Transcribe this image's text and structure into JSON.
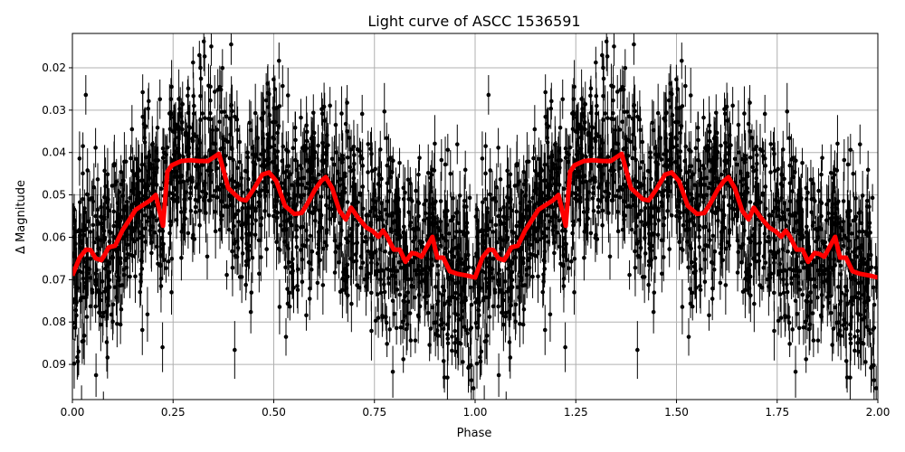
{
  "chart_data": {
    "type": "scatter",
    "title": "Light curve of ASCC 1536591",
    "xlabel": "Phase",
    "ylabel": "Δ Magnitude",
    "xlim": [
      0.0,
      2.0
    ],
    "ylim": [
      0.0119,
      0.0983
    ],
    "y_inverted": true,
    "grid": true,
    "xticks": [
      "0.00",
      "0.25",
      "0.50",
      "0.75",
      "1.00",
      "1.25",
      "1.50",
      "1.75",
      "2.00"
    ],
    "yticks": [
      "0.02",
      "0.03",
      "0.04",
      "0.05",
      "0.06",
      "0.07",
      "0.08",
      "0.09"
    ],
    "colors": {
      "points": "#000000",
      "fit": "#ff0000",
      "grid": "#b0b0b0"
    },
    "series": [
      {
        "kind": "errorbar-points",
        "color": "#000000",
        "description_of_spread": "dense observations scattered around the fit, roughly 0.012 to 0.098 mag"
      },
      {
        "kind": "smoothed-line",
        "color": "#ff0000",
        "x": [
          0,
          0.018,
          0.034,
          0.045,
          0.058,
          0.072,
          0.081,
          0.09,
          0.106,
          0.124,
          0.139,
          0.157,
          0.175,
          0.193,
          0.207,
          0.225,
          0.236,
          0.247,
          0.27,
          0.292,
          0.315,
          0.337,
          0.364,
          0.387,
          0.416,
          0.431,
          0.449,
          0.472,
          0.488,
          0.506,
          0.528,
          0.551,
          0.569,
          0.584,
          0.602,
          0.618,
          0.629,
          0.645,
          0.663,
          0.679,
          0.692,
          0.708,
          0.73,
          0.746,
          0.76,
          0.771,
          0.782,
          0.798,
          0.813,
          0.827,
          0.843,
          0.854,
          0.867,
          0.894,
          0.906,
          0.921,
          0.937,
          0.955,
          0.978,
          1.0,
          1.018,
          1.034,
          1.045,
          1.058,
          1.072,
          1.081,
          1.09,
          1.106,
          1.124,
          1.139,
          1.157,
          1.175,
          1.193,
          1.207,
          1.225,
          1.236,
          1.247,
          1.27,
          1.292,
          1.315,
          1.337,
          1.364,
          1.387,
          1.416,
          1.431,
          1.449,
          1.472,
          1.488,
          1.506,
          1.528,
          1.551,
          1.569,
          1.584,
          1.602,
          1.618,
          1.629,
          1.645,
          1.663,
          1.679,
          1.692,
          1.708,
          1.73,
          1.746,
          1.76,
          1.771,
          1.782,
          1.798,
          1.813,
          1.827,
          1.843,
          1.854,
          1.867,
          1.894,
          1.906,
          1.921,
          1.937,
          1.955,
          1.978,
          2.0
        ],
        "y": [
          0.069,
          0.0648,
          0.0629,
          0.063,
          0.065,
          0.0654,
          0.064,
          0.0624,
          0.062,
          0.0584,
          0.0562,
          0.0535,
          0.0524,
          0.0513,
          0.05,
          0.0573,
          0.0445,
          0.043,
          0.042,
          0.0418,
          0.042,
          0.042,
          0.0403,
          0.0484,
          0.051,
          0.0513,
          0.0488,
          0.0452,
          0.0447,
          0.0467,
          0.0526,
          0.0545,
          0.0543,
          0.052,
          0.0488,
          0.0467,
          0.0458,
          0.0484,
          0.0537,
          0.0558,
          0.053,
          0.0552,
          0.0577,
          0.0586,
          0.0599,
          0.0584,
          0.0599,
          0.0629,
          0.0629,
          0.0658,
          0.0637,
          0.0639,
          0.0646,
          0.0599,
          0.0648,
          0.0648,
          0.068,
          0.0686,
          0.069,
          0.0695,
          0.0648,
          0.0629,
          0.063,
          0.065,
          0.0654,
          0.064,
          0.0624,
          0.062,
          0.0584,
          0.0562,
          0.0535,
          0.0524,
          0.0513,
          0.05,
          0.0573,
          0.0445,
          0.043,
          0.042,
          0.0418,
          0.042,
          0.042,
          0.0403,
          0.0484,
          0.051,
          0.0513,
          0.0488,
          0.0452,
          0.0447,
          0.0467,
          0.0526,
          0.0545,
          0.0543,
          0.052,
          0.0488,
          0.0467,
          0.0458,
          0.0484,
          0.0537,
          0.0558,
          0.053,
          0.0552,
          0.0577,
          0.0586,
          0.0599,
          0.0584,
          0.0599,
          0.0629,
          0.0629,
          0.0658,
          0.0637,
          0.0639,
          0.0646,
          0.0599,
          0.0648,
          0.0648,
          0.068,
          0.0686,
          0.069,
          0.0695
        ]
      }
    ]
  }
}
